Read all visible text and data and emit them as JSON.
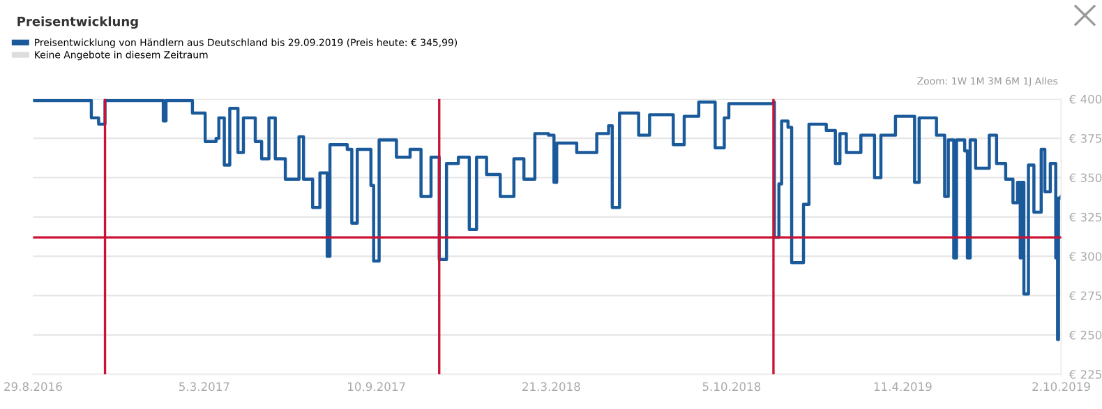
{
  "chart_data": {
    "type": "step",
    "title": "Preisentwicklung",
    "legend": "top left",
    "grid": "y",
    "annotations": [
      "Zoom: 1W 1M 3M 6M 1J Alles"
    ],
    "xlim": [
      "2016-08-29",
      "2019-10-02"
    ],
    "xticks": [
      {
        "value": "2016-08-29",
        "label": "29.8.2016"
      },
      {
        "value": "2017-03-05",
        "label": "5.3.2017"
      },
      {
        "value": "2017-09-10",
        "label": "10.9.2017"
      },
      {
        "value": "2018-03-21",
        "label": "21.3.2018"
      },
      {
        "value": "2018-10-05",
        "label": "5.10.2018"
      },
      {
        "value": "2019-04-11",
        "label": "11.4.2019"
      },
      {
        "value": "2019-10-02",
        "label": "2.10.2019"
      }
    ],
    "ylim": [
      225,
      400
    ],
    "yticks": [
      {
        "value": 225,
        "label": "€ 225"
      },
      {
        "value": 250,
        "label": "€ 250"
      },
      {
        "value": 275,
        "label": "€ 275"
      },
      {
        "value": 300,
        "label": "€ 300"
      },
      {
        "value": 325,
        "label": "€ 325"
      },
      {
        "value": 350,
        "label": "€ 350"
      },
      {
        "value": 375,
        "label": "€ 375"
      },
      {
        "value": 400,
        "label": "€ 400"
      }
    ],
    "ref_lines": [
      {
        "axis": "y",
        "value": 312,
        "label": null,
        "color": "#cc1133"
      },
      {
        "axis": "x",
        "value": "2016-11-16",
        "label": null,
        "color": "#cc1133"
      },
      {
        "axis": "x",
        "value": "2017-11-18",
        "label": null,
        "color": "#cc1133"
      },
      {
        "axis": "x",
        "value": "2018-11-20",
        "label": null,
        "color": "#cc1133"
      }
    ],
    "series": [
      {
        "name": "Preisentwicklung von Händlern aus Deutschland bis 29.09.2019 (Preis heute: € 345,99)",
        "color": "#1a5a9a",
        "x": [
          "2016-08-29",
          "2016-10-29",
          "2016-11-01",
          "2016-11-09",
          "2016-11-16",
          "2017-01-16",
          "2017-01-19",
          "2017-01-22",
          "2017-02-15",
          "2017-02-20",
          "2017-03-06",
          "2017-03-18",
          "2017-03-21",
          "2017-03-27",
          "2017-04-02",
          "2017-04-11",
          "2017-04-17",
          "2017-04-30",
          "2017-05-07",
          "2017-05-15",
          "2017-05-22",
          "2017-06-02",
          "2017-06-17",
          "2017-06-22",
          "2017-07-02",
          "2017-07-10",
          "2017-07-18",
          "2017-07-21",
          "2017-08-09",
          "2017-08-14",
          "2017-08-20",
          "2017-09-04",
          "2017-09-07",
          "2017-09-13",
          "2017-10-02",
          "2017-10-17",
          "2017-10-29",
          "2017-11-09",
          "2017-11-18",
          "2017-11-26",
          "2017-12-09",
          "2017-12-21",
          "2017-12-29",
          "2018-01-09",
          "2018-01-24",
          "2018-02-08",
          "2018-02-19",
          "2018-03-03",
          "2018-03-18",
          "2018-03-24",
          "2018-03-27",
          "2018-04-18",
          "2018-05-10",
          "2018-05-23",
          "2018-05-27",
          "2018-06-04",
          "2018-06-25",
          "2018-07-07",
          "2018-08-02",
          "2018-08-14",
          "2018-08-30",
          "2018-09-17",
          "2018-09-27",
          "2018-10-02",
          "2018-11-20",
          "2018-11-21",
          "2018-11-26",
          "2018-11-29",
          "2018-12-06",
          "2018-12-10",
          "2018-12-22",
          "2018-12-23",
          "2018-12-29",
          "2019-01-17",
          "2019-01-27",
          "2019-02-01",
          "2019-02-08",
          "2019-02-24",
          "2019-03-11",
          "2019-03-18",
          "2019-04-03",
          "2019-04-24",
          "2019-04-29",
          "2019-05-18",
          "2019-05-27",
          "2019-05-31",
          "2019-06-06",
          "2019-06-09",
          "2019-06-18",
          "2019-06-21",
          "2019-06-24",
          "2019-06-30",
          "2019-07-15",
          "2019-07-23",
          "2019-08-02",
          "2019-08-10",
          "2019-08-15",
          "2019-08-18",
          "2019-08-19",
          "2019-08-22",
          "2019-08-27",
          "2019-09-02",
          "2019-09-10",
          "2019-09-14",
          "2019-09-20",
          "2019-09-26",
          "2019-09-28",
          "2019-09-29",
          "2019-10-02"
        ],
        "values": [
          399,
          399,
          388,
          384,
          399,
          399,
          386,
          399,
          399,
          391,
          373,
          375,
          388,
          358,
          394,
          366,
          388,
          373,
          362,
          388,
          362,
          349,
          376,
          349,
          331,
          353,
          300,
          371,
          368,
          321,
          368,
          345,
          297,
          374,
          363,
          368,
          338,
          363,
          298,
          359,
          363,
          317,
          363,
          352,
          338,
          362,
          349,
          378,
          377,
          347,
          372,
          366,
          378,
          383,
          331,
          391,
          377,
          390,
          371,
          389,
          398,
          369,
          388,
          397,
          398,
          312,
          346,
          386,
          382,
          296,
          296,
          333,
          384,
          380,
          359,
          378,
          366,
          377,
          350,
          377,
          389,
          347,
          388,
          377,
          338,
          374,
          299,
          374,
          367,
          299,
          374,
          356,
          377,
          359,
          349,
          334,
          347,
          299,
          347,
          276,
          358,
          328,
          368,
          341,
          359,
          299,
          247,
          337,
          338
        ]
      },
      {
        "name": "Keine Angebote in diesem Zeitraum",
        "color": "#dddddd"
      }
    ]
  }
}
